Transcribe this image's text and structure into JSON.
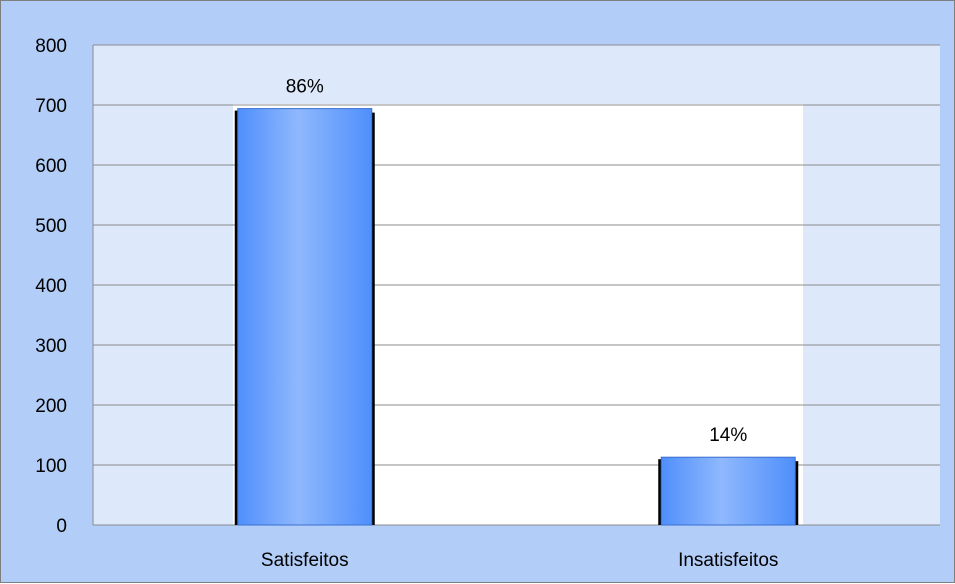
{
  "colors": {
    "frame_background": "#b2cdf7",
    "plot_background": "#dde8fb",
    "bar_fill": "#4f8ffb",
    "bar_highlight": "#8fb8fd",
    "bar_shadow": "#000000",
    "gridline": "#8c8c8c"
  },
  "chart_data": {
    "type": "bar",
    "title": "",
    "xlabel": "",
    "ylabel": "",
    "categories": [
      "Satisfeitos",
      "Insatisfeitos"
    ],
    "values": [
      694,
      113
    ],
    "data_labels": [
      "86%",
      "14%"
    ],
    "ylim": [
      0,
      800
    ],
    "yticks": [
      0,
      100,
      200,
      300,
      400,
      500,
      600,
      700,
      800
    ],
    "grid": true,
    "legend": "none"
  }
}
